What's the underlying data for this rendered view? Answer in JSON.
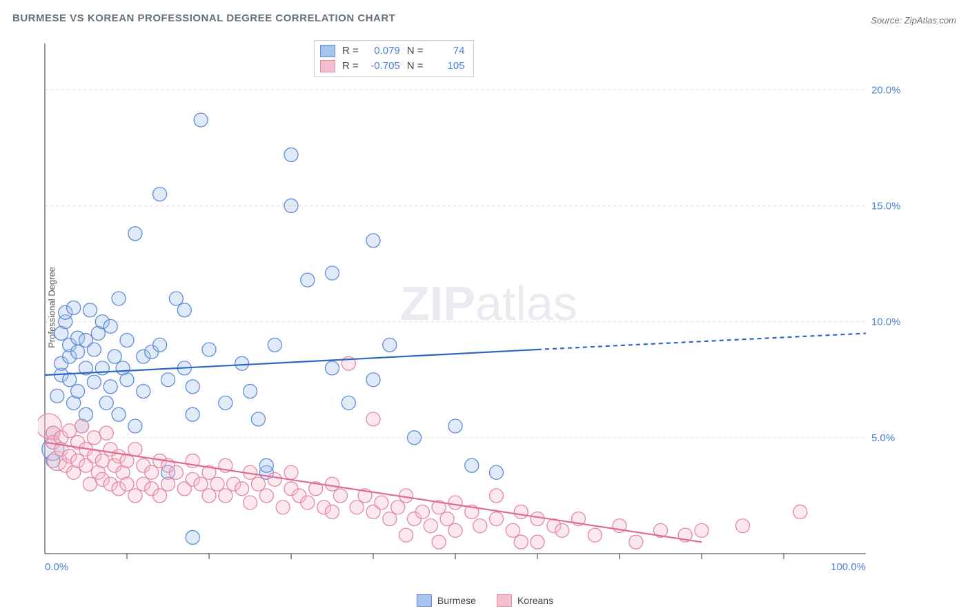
{
  "title": "BURMESE VS KOREAN PROFESSIONAL DEGREE CORRELATION CHART",
  "source": "Source: ZipAtlas.com",
  "ylabel": "Professional Degree",
  "watermark": {
    "part1": "ZIP",
    "part2": "atlas"
  },
  "chart": {
    "type": "scatter",
    "background": "#ffffff",
    "grid_color": "#dcdcdc",
    "axis_color": "#333333",
    "xlim": [
      0,
      100
    ],
    "ylim": [
      0,
      22
    ],
    "xticks_minor": [
      10,
      20,
      30,
      40,
      50,
      60,
      70,
      80,
      90
    ],
    "xtick_labels": [
      {
        "x": 0,
        "t": "0.0%"
      },
      {
        "x": 100,
        "t": "100.0%"
      }
    ],
    "ytick_labels": [
      {
        "y": 5,
        "t": "5.0%"
      },
      {
        "y": 10,
        "t": "10.0%"
      },
      {
        "y": 15,
        "t": "15.0%"
      },
      {
        "y": 20,
        "t": "20.0%"
      }
    ],
    "tick_label_color": "#4a80d6",
    "marker_radius": 10,
    "marker_fill_opacity": 0.35,
    "marker_stroke_width": 1.3,
    "trend_line_width": 2.2,
    "trend_dash": "6 5"
  },
  "series": [
    {
      "name": "Burmese",
      "fill": "#a8c4ec",
      "stroke": "#5b8cd8",
      "line_color": "#2f66c4",
      "R": "0.079",
      "N": "74",
      "trend": {
        "x1": 0,
        "y1": 7.7,
        "x2_solid": 60,
        "y2_solid": 8.8,
        "x2": 100,
        "y2": 9.5
      },
      "points": [
        [
          1,
          4.0
        ],
        [
          1,
          4.5,
          16
        ],
        [
          1,
          5.2
        ],
        [
          1.5,
          6.8
        ],
        [
          2,
          7.7
        ],
        [
          2,
          8.2
        ],
        [
          2,
          9.5
        ],
        [
          2.5,
          10.0
        ],
        [
          2.5,
          10.4
        ],
        [
          3,
          8.5
        ],
        [
          3,
          7.5
        ],
        [
          3,
          9.0
        ],
        [
          3.5,
          6.5
        ],
        [
          3.5,
          10.6
        ],
        [
          4,
          8.7
        ],
        [
          4,
          9.3
        ],
        [
          4,
          7.0
        ],
        [
          4.5,
          5.5
        ],
        [
          5,
          8.0
        ],
        [
          5,
          9.2
        ],
        [
          5,
          6.0
        ],
        [
          5.5,
          10.5
        ],
        [
          6,
          8.8
        ],
        [
          6,
          7.4
        ],
        [
          6.5,
          9.5
        ],
        [
          7,
          10.0
        ],
        [
          7,
          8.0
        ],
        [
          7.5,
          6.5
        ],
        [
          8,
          9.8
        ],
        [
          8,
          7.2
        ],
        [
          8.5,
          8.5
        ],
        [
          9,
          11.0
        ],
        [
          9,
          6.0
        ],
        [
          9.5,
          8.0
        ],
        [
          10,
          9.2
        ],
        [
          10,
          7.5
        ],
        [
          11,
          5.5
        ],
        [
          11,
          13.8
        ],
        [
          12,
          8.5
        ],
        [
          12,
          7.0
        ],
        [
          13,
          8.7
        ],
        [
          14,
          9.0
        ],
        [
          14,
          15.5
        ],
        [
          15,
          7.5
        ],
        [
          15,
          3.5
        ],
        [
          16,
          11.0
        ],
        [
          17,
          10.5
        ],
        [
          17,
          8.0
        ],
        [
          18,
          7.2
        ],
        [
          18,
          6.0
        ],
        [
          18,
          0.7
        ],
        [
          19,
          18.7
        ],
        [
          20,
          8.8
        ],
        [
          22,
          6.5
        ],
        [
          24,
          8.2
        ],
        [
          25,
          7.0
        ],
        [
          26,
          5.8
        ],
        [
          27,
          3.5
        ],
        [
          27,
          3.8
        ],
        [
          28,
          9.0
        ],
        [
          30,
          15.0
        ],
        [
          30,
          17.2
        ],
        [
          32,
          11.8
        ],
        [
          35,
          8.0
        ],
        [
          35,
          12.1
        ],
        [
          37,
          6.5
        ],
        [
          40,
          7.5
        ],
        [
          40,
          13.5
        ],
        [
          42,
          9.0
        ],
        [
          45,
          5.0
        ],
        [
          50,
          5.5
        ],
        [
          52,
          3.8
        ],
        [
          55,
          3.5
        ]
      ]
    },
    {
      "name": "Koreans",
      "fill": "#f5c0cd",
      "stroke": "#e586a2",
      "line_color": "#e06b8f",
      "R": "-0.705",
      "N": "105",
      "trend": {
        "x1": 0,
        "y1": 4.8,
        "x2_solid": 80,
        "y2_solid": 0.5,
        "x2": 80,
        "y2": 0.5
      },
      "points": [
        [
          0.5,
          5.5,
          18
        ],
        [
          1,
          5.2
        ],
        [
          1,
          4.8
        ],
        [
          1.5,
          4.0,
          14
        ],
        [
          2,
          5.0
        ],
        [
          2,
          4.5
        ],
        [
          2.5,
          3.8
        ],
        [
          3,
          5.3
        ],
        [
          3,
          4.2
        ],
        [
          3.5,
          3.5
        ],
        [
          4,
          4.8
        ],
        [
          4,
          4.0
        ],
        [
          4.5,
          5.5
        ],
        [
          5,
          3.8
        ],
        [
          5,
          4.5
        ],
        [
          5.5,
          3.0
        ],
        [
          6,
          4.2
        ],
        [
          6,
          5.0
        ],
        [
          6.5,
          3.5
        ],
        [
          7,
          4.0
        ],
        [
          7,
          3.2
        ],
        [
          7.5,
          5.2
        ],
        [
          8,
          4.5
        ],
        [
          8,
          3.0
        ],
        [
          8.5,
          3.8
        ],
        [
          9,
          4.2
        ],
        [
          9,
          2.8
        ],
        [
          9.5,
          3.5
        ],
        [
          10,
          4.0
        ],
        [
          10,
          3.0
        ],
        [
          11,
          4.5
        ],
        [
          11,
          2.5
        ],
        [
          12,
          3.8
        ],
        [
          12,
          3.0
        ],
        [
          13,
          3.5
        ],
        [
          13,
          2.8
        ],
        [
          14,
          4.0
        ],
        [
          14,
          2.5
        ],
        [
          15,
          3.8
        ],
        [
          15,
          3.0
        ],
        [
          16,
          3.5
        ],
        [
          17,
          2.8
        ],
        [
          18,
          3.2
        ],
        [
          18,
          4.0
        ],
        [
          19,
          3.0
        ],
        [
          20,
          3.5
        ],
        [
          20,
          2.5
        ],
        [
          21,
          3.0
        ],
        [
          22,
          3.8
        ],
        [
          22,
          2.5
        ],
        [
          23,
          3.0
        ],
        [
          24,
          2.8
        ],
        [
          25,
          3.5
        ],
        [
          25,
          2.2
        ],
        [
          26,
          3.0
        ],
        [
          27,
          2.5
        ],
        [
          28,
          3.2
        ],
        [
          29,
          2.0
        ],
        [
          30,
          2.8
        ],
        [
          30,
          3.5
        ],
        [
          31,
          2.5
        ],
        [
          32,
          2.2
        ],
        [
          33,
          2.8
        ],
        [
          34,
          2.0
        ],
        [
          35,
          3.0
        ],
        [
          35,
          1.8
        ],
        [
          36,
          2.5
        ],
        [
          37,
          8.2
        ],
        [
          38,
          2.0
        ],
        [
          39,
          2.5
        ],
        [
          40,
          1.8
        ],
        [
          40,
          5.8
        ],
        [
          41,
          2.2
        ],
        [
          42,
          1.5
        ],
        [
          43,
          2.0
        ],
        [
          44,
          2.5
        ],
        [
          44,
          0.8
        ],
        [
          45,
          1.5
        ],
        [
          46,
          1.8
        ],
        [
          47,
          1.2
        ],
        [
          48,
          2.0
        ],
        [
          48,
          0.5
        ],
        [
          49,
          1.5
        ],
        [
          50,
          2.2
        ],
        [
          50,
          1.0
        ],
        [
          52,
          1.8
        ],
        [
          53,
          1.2
        ],
        [
          55,
          1.5
        ],
        [
          55,
          2.5
        ],
        [
          57,
          1.0
        ],
        [
          58,
          1.8
        ],
        [
          58,
          0.5
        ],
        [
          60,
          1.5
        ],
        [
          60,
          0.5
        ],
        [
          62,
          1.2
        ],
        [
          63,
          1.0
        ],
        [
          65,
          1.5
        ],
        [
          67,
          0.8
        ],
        [
          70,
          1.2
        ],
        [
          72,
          0.5
        ],
        [
          75,
          1.0
        ],
        [
          78,
          0.8
        ],
        [
          80,
          1.0
        ],
        [
          85,
          1.2
        ],
        [
          92,
          1.8
        ]
      ]
    }
  ],
  "legend_bottom": [
    {
      "label": "Burmese",
      "series": 0
    },
    {
      "label": "Koreans",
      "series": 1
    }
  ]
}
